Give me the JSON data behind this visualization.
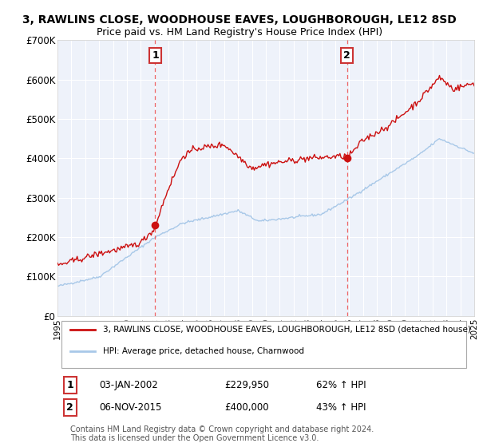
{
  "title": "3, RAWLINS CLOSE, WOODHOUSE EAVES, LOUGHBOROUGH, LE12 8SD",
  "subtitle": "Price paid vs. HM Land Registry's House Price Index (HPI)",
  "ylim": [
    0,
    700000
  ],
  "yticks": [
    0,
    100000,
    200000,
    300000,
    400000,
    500000,
    600000,
    700000
  ],
  "ytick_labels": [
    "£0",
    "£100K",
    "£200K",
    "£300K",
    "£400K",
    "£500K",
    "£600K",
    "£700K"
  ],
  "x_start_year": 1995,
  "x_end_year": 2025,
  "marker1_date": 2002.04,
  "marker1_price": 229950,
  "marker2_date": 2015.85,
  "marker2_price": 400000,
  "hpi_color": "#a8c8e8",
  "price_color": "#cc1111",
  "marker_line_color": "#ee6666",
  "bg_color": "#eef2fa",
  "grid_color": "#ffffff",
  "legend_label1": "3, RAWLINS CLOSE, WOODHOUSE EAVES, LOUGHBOROUGH, LE12 8SD (detached house)",
  "legend_label2": "HPI: Average price, detached house, Charnwood",
  "footer": "Contains HM Land Registry data © Crown copyright and database right 2024.\nThis data is licensed under the Open Government Licence v3.0.",
  "title_fontsize": 10,
  "subtitle_fontsize": 9
}
